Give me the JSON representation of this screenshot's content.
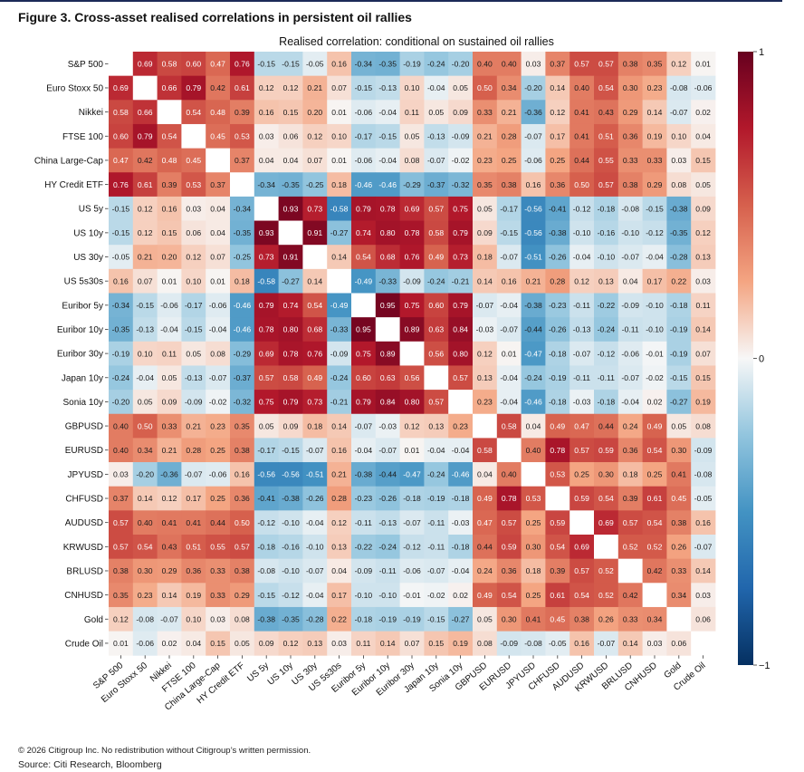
{
  "figure": {
    "title": "Figure 3. Cross-asset realised correlations in persistent oil rallies",
    "copyright": "© 2026 Citigroup Inc. No redistribution without Citigroup’s written permission.",
    "source": "Source: Citi Research, Bloomberg"
  },
  "colors": {
    "high": "#67001f",
    "mid": "#f7f7f7",
    "low": "#053061",
    "top_rule": "#1b2a57"
  },
  "chart_data": {
    "type": "heatmap",
    "title": "Realised correlation: conditional on sustained oil rallies",
    "labels": [
      "S&P 500",
      "Euro Stoxx 50",
      "Nikkei",
      "FTSE 100",
      "China Large-Cap",
      "HY Credit ETF",
      "US 5y",
      "US 10y",
      "US 30y",
      "US 5s30s",
      "Euribor 5y",
      "Euribor 10y",
      "Euribor 30y",
      "Japan 10y",
      "Sonia 10y",
      "GBPUSD",
      "EURUSD",
      "JPYUSD",
      "CHFUSD",
      "AUDUSD",
      "KRWUSD",
      "BRLUSD",
      "CNHUSD",
      "Gold",
      "Crude Oil"
    ],
    "values": [
      [
        null,
        0.69,
        0.58,
        0.6,
        0.47,
        0.76,
        -0.15,
        -0.15,
        -0.05,
        0.16,
        -0.34,
        -0.35,
        -0.19,
        -0.24,
        -0.2,
        0.4,
        0.4,
        0.03,
        0.37,
        0.57,
        0.57,
        0.38,
        0.35,
        0.12,
        0.01
      ],
      [
        0.69,
        null,
        0.66,
        0.79,
        0.42,
        0.61,
        0.12,
        0.12,
        0.21,
        0.07,
        -0.15,
        -0.13,
        0.1,
        -0.04,
        0.05,
        0.5,
        0.34,
        -0.2,
        0.14,
        0.4,
        0.54,
        0.3,
        0.23,
        -0.08,
        -0.06
      ],
      [
        0.58,
        0.66,
        null,
        0.54,
        0.48,
        0.39,
        0.16,
        0.15,
        0.2,
        0.01,
        -0.06,
        -0.04,
        0.11,
        0.05,
        0.09,
        0.33,
        0.21,
        -0.36,
        0.12,
        0.41,
        0.43,
        0.29,
        0.14,
        -0.07,
        0.02
      ],
      [
        0.6,
        0.79,
        0.54,
        null,
        0.45,
        0.53,
        0.03,
        0.06,
        0.12,
        0.1,
        -0.17,
        -0.15,
        0.05,
        -0.13,
        -0.09,
        0.21,
        0.28,
        -0.07,
        0.17,
        0.41,
        0.51,
        0.36,
        0.19,
        0.1,
        0.04
      ],
      [
        0.47,
        0.42,
        0.48,
        0.45,
        null,
        0.37,
        0.04,
        0.04,
        0.07,
        0.01,
        -0.06,
        -0.04,
        0.08,
        -0.07,
        -0.02,
        0.23,
        0.25,
        -0.06,
        0.25,
        0.44,
        0.55,
        0.33,
        0.33,
        0.03,
        0.15
      ],
      [
        0.76,
        0.61,
        0.39,
        0.53,
        0.37,
        null,
        -0.34,
        -0.35,
        -0.25,
        0.18,
        -0.46,
        -0.46,
        -0.29,
        -0.37,
        -0.32,
        0.35,
        0.38,
        0.16,
        0.36,
        0.5,
        0.57,
        0.38,
        0.29,
        0.08,
        0.05
      ],
      [
        -0.15,
        0.12,
        0.16,
        0.03,
        0.04,
        -0.34,
        null,
        0.93,
        0.73,
        -0.58,
        0.79,
        0.78,
        0.69,
        0.57,
        0.75,
        0.05,
        -0.17,
        -0.56,
        -0.41,
        -0.12,
        -0.18,
        -0.08,
        -0.15,
        -0.38,
        0.09
      ],
      [
        -0.15,
        0.12,
        0.15,
        0.06,
        0.04,
        -0.35,
        0.93,
        null,
        0.91,
        -0.27,
        0.74,
        0.8,
        0.78,
        0.58,
        0.79,
        0.09,
        -0.15,
        -0.56,
        -0.38,
        -0.1,
        -0.16,
        -0.1,
        -0.12,
        -0.35,
        0.12
      ],
      [
        -0.05,
        0.21,
        0.2,
        0.12,
        0.07,
        -0.25,
        0.73,
        0.91,
        null,
        0.14,
        0.54,
        0.68,
        0.76,
        0.49,
        0.73,
        0.18,
        -0.07,
        -0.51,
        -0.26,
        -0.04,
        -0.1,
        -0.07,
        -0.04,
        -0.28,
        0.13
      ],
      [
        0.16,
        0.07,
        0.01,
        0.1,
        0.01,
        0.18,
        -0.58,
        -0.27,
        0.14,
        null,
        -0.49,
        -0.33,
        -0.09,
        -0.24,
        -0.21,
        0.14,
        0.16,
        0.21,
        0.28,
        0.12,
        0.13,
        0.04,
        0.17,
        0.22,
        0.03
      ],
      [
        -0.34,
        -0.15,
        -0.06,
        -0.17,
        -0.06,
        -0.46,
        0.79,
        0.74,
        0.54,
        -0.49,
        null,
        0.95,
        0.75,
        0.6,
        0.79,
        -0.07,
        -0.04,
        -0.38,
        -0.23,
        -0.11,
        -0.22,
        -0.09,
        -0.1,
        -0.18,
        0.11
      ],
      [
        -0.35,
        -0.13,
        -0.04,
        -0.15,
        -0.04,
        -0.46,
        0.78,
        0.8,
        0.68,
        -0.33,
        0.95,
        null,
        0.89,
        0.63,
        0.84,
        -0.03,
        -0.07,
        -0.44,
        -0.26,
        -0.13,
        -0.24,
        -0.11,
        -0.1,
        -0.19,
        0.14
      ],
      [
        -0.19,
        0.1,
        0.11,
        0.05,
        0.08,
        -0.29,
        0.69,
        0.78,
        0.76,
        -0.09,
        0.75,
        0.89,
        null,
        0.56,
        0.8,
        0.12,
        0.01,
        -0.47,
        -0.18,
        -0.07,
        -0.12,
        -0.06,
        -0.01,
        -0.19,
        0.07
      ],
      [
        -0.24,
        -0.04,
        0.05,
        -0.13,
        -0.07,
        -0.37,
        0.57,
        0.58,
        0.49,
        -0.24,
        0.6,
        0.63,
        0.56,
        null,
        0.57,
        0.13,
        -0.04,
        -0.24,
        -0.19,
        -0.11,
        -0.11,
        -0.07,
        -0.02,
        -0.15,
        0.15
      ],
      [
        -0.2,
        0.05,
        0.09,
        -0.09,
        -0.02,
        -0.32,
        0.75,
        0.79,
        0.73,
        -0.21,
        0.79,
        0.84,
        0.8,
        0.57,
        null,
        0.23,
        -0.04,
        -0.46,
        -0.18,
        -0.03,
        -0.18,
        -0.04,
        0.02,
        -0.27,
        0.19
      ],
      [
        0.4,
        0.5,
        0.33,
        0.21,
        0.23,
        0.35,
        0.05,
        0.09,
        0.18,
        0.14,
        -0.07,
        -0.03,
        0.12,
        0.13,
        0.23,
        null,
        0.58,
        0.04,
        0.49,
        0.47,
        0.44,
        0.24,
        0.49,
        0.05,
        0.08
      ],
      [
        0.4,
        0.34,
        0.21,
        0.28,
        0.25,
        0.38,
        -0.17,
        -0.15,
        -0.07,
        0.16,
        -0.04,
        -0.07,
        0.01,
        -0.04,
        -0.04,
        0.58,
        null,
        0.4,
        0.78,
        0.57,
        0.59,
        0.36,
        0.54,
        0.3,
        -0.09
      ],
      [
        0.03,
        -0.2,
        -0.36,
        -0.07,
        -0.06,
        0.16,
        -0.56,
        -0.56,
        -0.51,
        0.21,
        -0.38,
        -0.44,
        -0.47,
        -0.24,
        -0.46,
        0.04,
        0.4,
        null,
        0.53,
        0.25,
        0.3,
        0.18,
        0.25,
        0.41,
        -0.08
      ],
      [
        0.37,
        0.14,
        0.12,
        0.17,
        0.25,
        0.36,
        -0.41,
        -0.38,
        -0.26,
        0.28,
        -0.23,
        -0.26,
        -0.18,
        -0.19,
        -0.18,
        0.49,
        0.78,
        0.53,
        null,
        0.59,
        0.54,
        0.39,
        0.61,
        0.45,
        -0.05
      ],
      [
        0.57,
        0.4,
        0.41,
        0.41,
        0.44,
        0.5,
        -0.12,
        -0.1,
        -0.04,
        0.12,
        -0.11,
        -0.13,
        -0.07,
        -0.11,
        -0.03,
        0.47,
        0.57,
        0.25,
        0.59,
        null,
        0.69,
        0.57,
        0.54,
        0.38,
        0.16
      ],
      [
        0.57,
        0.54,
        0.43,
        0.51,
        0.55,
        0.57,
        -0.18,
        -0.16,
        -0.1,
        0.13,
        -0.22,
        -0.24,
        -0.12,
        -0.11,
        -0.18,
        0.44,
        0.59,
        0.3,
        0.54,
        0.69,
        null,
        0.52,
        0.52,
        0.26,
        -0.07
      ],
      [
        0.38,
        0.3,
        0.29,
        0.36,
        0.33,
        0.38,
        -0.08,
        -0.1,
        -0.07,
        0.04,
        -0.09,
        -0.11,
        -0.06,
        -0.07,
        -0.04,
        0.24,
        0.36,
        0.18,
        0.39,
        0.57,
        0.52,
        null,
        0.42,
        0.33,
        0.14
      ],
      [
        0.35,
        0.23,
        0.14,
        0.19,
        0.33,
        0.29,
        -0.15,
        -0.12,
        -0.04,
        0.17,
        -0.1,
        -0.1,
        -0.01,
        -0.02,
        0.02,
        0.49,
        0.54,
        0.25,
        0.61,
        0.54,
        0.52,
        0.42,
        null,
        0.34,
        0.03
      ],
      [
        0.12,
        -0.08,
        -0.07,
        0.1,
        0.03,
        0.08,
        -0.38,
        -0.35,
        -0.28,
        0.22,
        -0.18,
        -0.19,
        -0.19,
        -0.15,
        -0.27,
        0.05,
        0.3,
        0.41,
        0.45,
        0.38,
        0.26,
        0.33,
        0.34,
        null,
        0.06
      ],
      [
        0.01,
        -0.06,
        0.02,
        0.04,
        0.15,
        0.05,
        0.09,
        0.12,
        0.13,
        0.03,
        0.11,
        0.14,
        0.07,
        0.15,
        0.19,
        0.08,
        -0.09,
        -0.08,
        -0.05,
        0.16,
        -0.07,
        0.14,
        0.03,
        0.06,
        null
      ]
    ],
    "colorbar": {
      "min": -1,
      "max": 1,
      "ticks": [
        1,
        0,
        -1
      ],
      "tick_labels": [
        "1",
        "0",
        "−1"
      ]
    },
    "grid": false,
    "legend": "colorbar-right"
  }
}
